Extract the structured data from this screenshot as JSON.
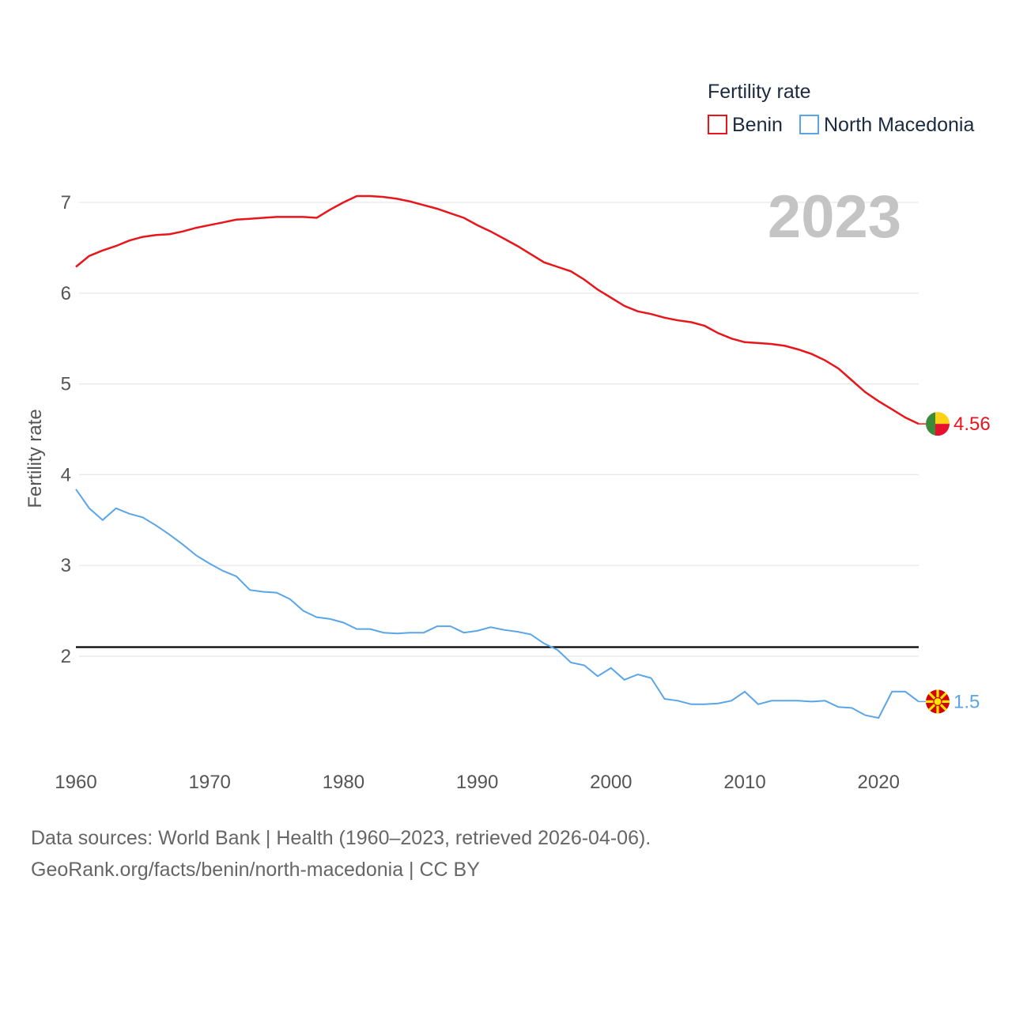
{
  "legend": {
    "title": "Fertility rate",
    "benin_label": "Benin",
    "macedonia_label": "North Macedonia"
  },
  "year_overlay": "2023",
  "source": {
    "line1": "Data sources: World Bank | Health (1960–2023, retrieved 2026-04-06).",
    "line2": "GeoRank.org/facts/benin/north-macedonia | CC BY"
  },
  "colors": {
    "benin": "#e8161b",
    "macedonia": "#5aa5e8",
    "reference": "#000000",
    "grid": "#e6e6e6"
  },
  "chart_data": {
    "type": "line",
    "title": "",
    "xlabel": "",
    "ylabel": "Fertility rate",
    "xlim": [
      1960,
      2023
    ],
    "ylim": [
      0.8,
      7.3
    ],
    "x_ticks": [
      1960,
      1970,
      1980,
      1990,
      2000,
      2010,
      2020
    ],
    "y_ticks": [
      2,
      3,
      4,
      5,
      6,
      7
    ],
    "reference_line": 2.1,
    "x": [
      1960,
      1961,
      1962,
      1963,
      1964,
      1965,
      1966,
      1967,
      1968,
      1969,
      1970,
      1971,
      1972,
      1973,
      1974,
      1975,
      1976,
      1977,
      1978,
      1979,
      1980,
      1981,
      1982,
      1983,
      1984,
      1985,
      1986,
      1987,
      1988,
      1989,
      1990,
      1991,
      1992,
      1993,
      1994,
      1995,
      1996,
      1997,
      1998,
      1999,
      2000,
      2001,
      2002,
      2003,
      2004,
      2005,
      2006,
      2007,
      2008,
      2009,
      2010,
      2011,
      2012,
      2013,
      2014,
      2015,
      2016,
      2017,
      2018,
      2019,
      2020,
      2021,
      2022,
      2023
    ],
    "series": [
      {
        "name": "Benin",
        "end_label": "4.56",
        "values": [
          6.29,
          6.41,
          6.47,
          6.52,
          6.58,
          6.62,
          6.64,
          6.65,
          6.68,
          6.72,
          6.75,
          6.78,
          6.81,
          6.82,
          6.83,
          6.84,
          6.84,
          6.84,
          6.83,
          6.92,
          7.0,
          7.07,
          7.07,
          7.06,
          7.04,
          7.01,
          6.97,
          6.93,
          6.88,
          6.83,
          6.75,
          6.68,
          6.6,
          6.52,
          6.43,
          6.34,
          6.29,
          6.24,
          6.15,
          6.04,
          5.95,
          5.86,
          5.8,
          5.77,
          5.73,
          5.7,
          5.68,
          5.64,
          5.56,
          5.5,
          5.46,
          5.45,
          5.44,
          5.42,
          5.38,
          5.33,
          5.26,
          5.17,
          5.04,
          4.91,
          4.81,
          4.72,
          4.63,
          4.56
        ]
      },
      {
        "name": "North Macedonia",
        "end_label": "1.5",
        "values": [
          3.84,
          3.63,
          3.5,
          3.63,
          3.57,
          3.53,
          3.44,
          3.34,
          3.23,
          3.11,
          3.02,
          2.94,
          2.88,
          2.73,
          2.71,
          2.7,
          2.63,
          2.5,
          2.43,
          2.41,
          2.37,
          2.3,
          2.3,
          2.26,
          2.25,
          2.26,
          2.26,
          2.33,
          2.33,
          2.26,
          2.28,
          2.32,
          2.29,
          2.27,
          2.24,
          2.14,
          2.07,
          1.93,
          1.9,
          1.78,
          1.87,
          1.74,
          1.8,
          1.76,
          1.53,
          1.51,
          1.47,
          1.47,
          1.48,
          1.51,
          1.61,
          1.47,
          1.51,
          1.51,
          1.51,
          1.5,
          1.51,
          1.44,
          1.43,
          1.35,
          1.32,
          1.61,
          1.61,
          1.5
        ]
      }
    ]
  }
}
